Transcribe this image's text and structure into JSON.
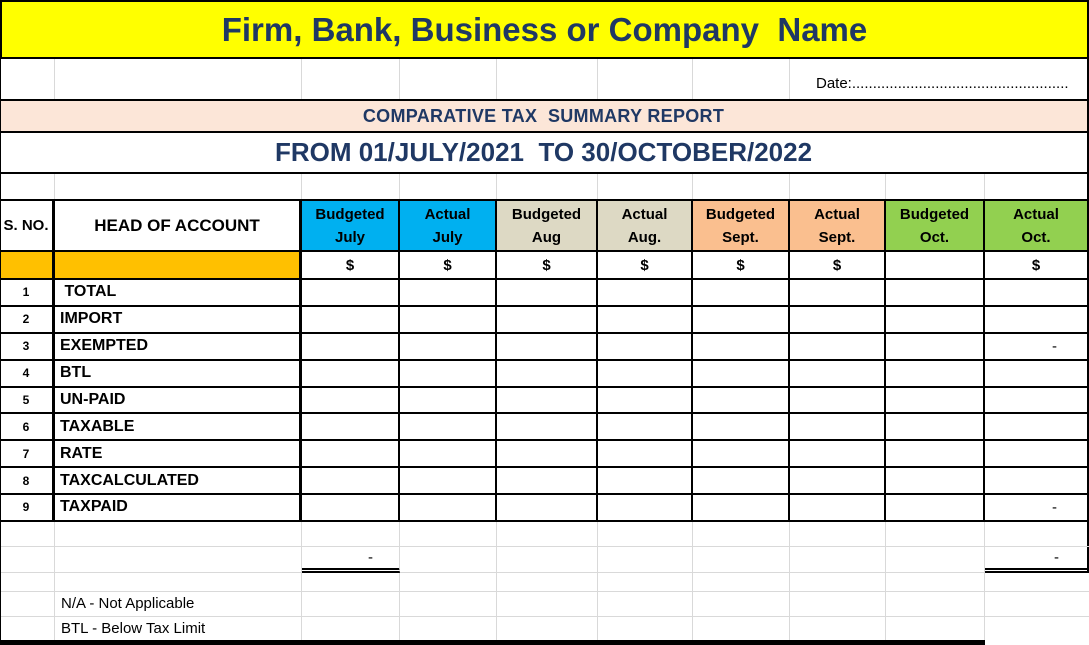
{
  "banner": {
    "title": "Firm, Bank, Business or Company  Name"
  },
  "date_row": {
    "label": "Date:...................................................."
  },
  "report": {
    "title": "COMPARATIVE TAX  SUMMARY REPORT",
    "period": "FROM 01/JULY/2021  TO 30/OCTOBER/2022"
  },
  "table": {
    "sno_header": "S. NO.",
    "account_header": "HEAD OF ACCOUNT",
    "month_headers": [
      {
        "line1": "Budgeted",
        "line2": "July",
        "color": "#00B0F0"
      },
      {
        "line1": "Actual",
        "line2": "July",
        "color": "#00B0F0"
      },
      {
        "line1": "Budgeted",
        "line2": "Aug",
        "color": "#DDD9C4"
      },
      {
        "line1": "Actual",
        "line2": "Aug.",
        "color": "#DDD9C4"
      },
      {
        "line1": "Budgeted",
        "line2": "Sept.",
        "color": "#FABF8F"
      },
      {
        "line1": "Actual",
        "line2": "Sept.",
        "color": "#FABF8F"
      },
      {
        "line1": "Budgeted",
        "line2": "Oct.",
        "color": "#92D050"
      },
      {
        "line1": "Actual",
        "line2": "Oct.",
        "color": "#92D050"
      }
    ],
    "currency_row": {
      "cells": [
        "$",
        "$",
        "$",
        "$",
        "$",
        "$",
        "",
        "$"
      ]
    },
    "rows": [
      {
        "no": "1",
        "label": " TOTAL",
        "actual_oct": ""
      },
      {
        "no": "2",
        "label": "IMPORT",
        "actual_oct": ""
      },
      {
        "no": "3",
        "label": "EXEMPTED",
        "actual_oct": "-"
      },
      {
        "no": "4",
        "label": "BTL",
        "actual_oct": ""
      },
      {
        "no": "5",
        "label": "UN-PAID",
        "actual_oct": ""
      },
      {
        "no": "6",
        "label": "TAXABLE",
        "actual_oct": ""
      },
      {
        "no": "7",
        "label": "RATE",
        "actual_oct": ""
      },
      {
        "no": "8",
        "label": "TAXCALCULATED",
        "actual_oct": ""
      },
      {
        "no": "9",
        "label": "TAXPAID",
        "actual_oct": "-"
      }
    ],
    "totals_row": {
      "budgeted_july": "-",
      "actual_oct": "-"
    }
  },
  "notes": {
    "na": "N/A - Not Applicable",
    "btl": "BTL - Below Tax Limit"
  },
  "colors": {
    "banner_bg": "#FFFF00",
    "title_text": "#1F3864",
    "report_banner_bg": "#FCE6D8",
    "july_header": "#00B0F0",
    "aug_header": "#DDD9C4",
    "sept_header": "#FABF8F",
    "oct_header": "#92D050",
    "sno_fill": "#FFC000",
    "gridline": "#D9D9D9"
  }
}
